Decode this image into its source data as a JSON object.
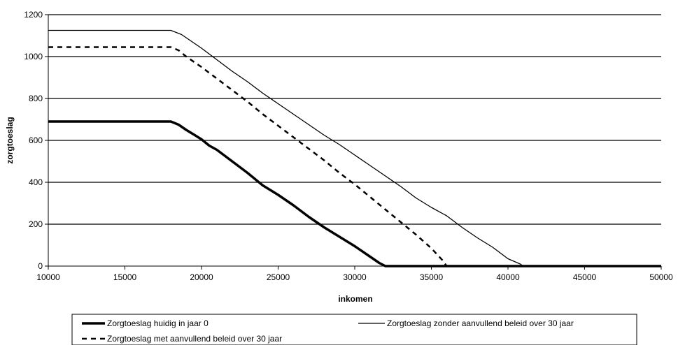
{
  "chart_data": {
    "type": "line",
    "xlabel": "inkomen",
    "ylabel": "zorgtoeslag",
    "xlim": [
      10000,
      50000
    ],
    "ylim": [
      0,
      1200
    ],
    "xticks": [
      10000,
      15000,
      20000,
      25000,
      30000,
      35000,
      40000,
      45000,
      50000
    ],
    "yticks": [
      0,
      200,
      400,
      600,
      800,
      1000,
      1200
    ],
    "grid": "horizontal",
    "legend_position": "bottom",
    "series": [
      {
        "name": "Zorgtoeslag huidig in jaar 0",
        "style": "thick-solid",
        "color": "#000000",
        "x": [
          10000,
          18000,
          18500,
          19000,
          19500,
          20000,
          20500,
          21000,
          22000,
          23000,
          24000,
          25000,
          26000,
          27000,
          28000,
          29000,
          30000,
          31000,
          31600,
          32000,
          50000
        ],
        "y": [
          690,
          690,
          675,
          650,
          628,
          605,
          575,
          555,
          500,
          445,
          385,
          340,
          290,
          235,
          185,
          140,
          95,
          45,
          15,
          0,
          0
        ]
      },
      {
        "name": "Zorgtoeslag zonder aanvullend beleid over 30 jaar",
        "style": "thin-solid",
        "color": "#000000",
        "x": [
          10000,
          18000,
          18700,
          19500,
          20000,
          21000,
          22000,
          23000,
          24000,
          25000,
          26000,
          27000,
          28000,
          29000,
          30000,
          31000,
          32000,
          33000,
          34000,
          35000,
          36000,
          37000,
          38000,
          39000,
          40000,
          40800,
          41000,
          50000
        ],
        "y": [
          1125,
          1125,
          1105,
          1065,
          1040,
          985,
          930,
          880,
          825,
          775,
          725,
          675,
          625,
          580,
          530,
          480,
          430,
          380,
          325,
          280,
          240,
          185,
          135,
          90,
          35,
          10,
          0,
          0
        ]
      },
      {
        "name": "Zorgtoeslag met aanvullend beleid over 30 jaar",
        "style": "dashed",
        "color": "#000000",
        "x": [
          10000,
          18000,
          18500,
          19000,
          20000,
          21000,
          22000,
          23000,
          24000,
          25000,
          26000,
          27000,
          28000,
          29000,
          30000,
          31000,
          32000,
          33000,
          34000,
          35000,
          35700,
          36000,
          50000
        ],
        "y": [
          1045,
          1045,
          1030,
          1000,
          950,
          895,
          840,
          785,
          725,
          670,
          615,
          560,
          505,
          445,
          390,
          330,
          270,
          210,
          150,
          85,
          30,
          0,
          0
        ]
      }
    ]
  }
}
